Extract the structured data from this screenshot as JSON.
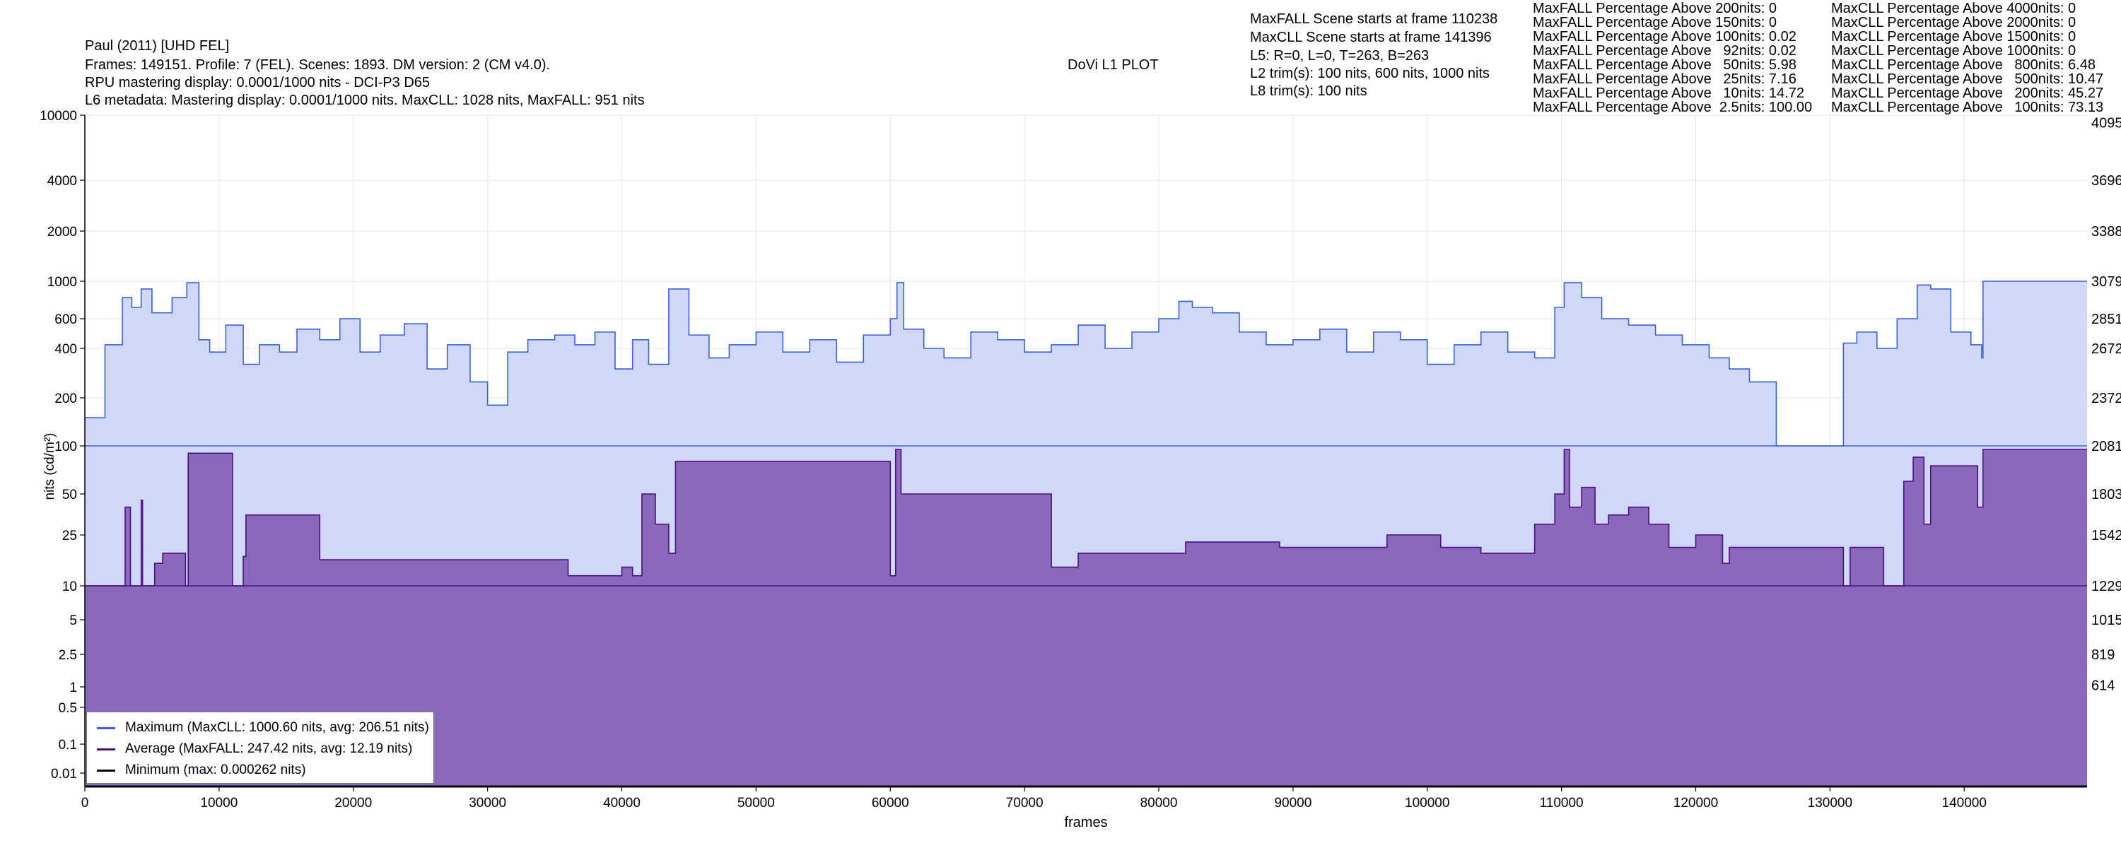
{
  "header": {
    "title_line": "Paul (2011) [UHD FEL]",
    "frames_line": "Frames: 149151. Profile: 7 (FEL). Scenes: 1893. DM version: 2 (CM v4.0).",
    "rpu_line": "RPU mastering display: 0.0001/1000 nits - DCI-P3 D65",
    "l6_line": "L6 metadata: Mastering display: 0.0001/1000 nits. MaxCLL: 1028 nits, MaxFALL: 951 nits",
    "plot_title": "DoVi L1 PLOT"
  },
  "info": [
    "MaxFALL Scene starts at frame 110238",
    "MaxCLL Scene starts at frame 141396",
    "L5: R=0, L=0, T=263, B=263",
    "L2 trim(s): 100 nits, 600 nits, 1000 nits",
    "L8 trim(s): 100 nits"
  ],
  "maxfall_stats": [
    "MaxFALL Percentage Above 200nits: 0",
    "MaxFALL Percentage Above 150nits: 0",
    "MaxFALL Percentage Above 100nits: 0.02",
    "MaxFALL Percentage Above   92nits: 0.02",
    "MaxFALL Percentage Above   50nits: 5.98",
    "MaxFALL Percentage Above   25nits: 7.16",
    "MaxFALL Percentage Above   10nits: 14.72",
    "MaxFALL Percentage Above  2.5nits: 100.00"
  ],
  "maxcll_stats": [
    "MaxCLL Percentage Above 4000nits: 0",
    "MaxCLL Percentage Above 2000nits: 0",
    "MaxCLL Percentage Above 1500nits: 0",
    "MaxCLL Percentage Above 1000nits: 0",
    "MaxCLL Percentage Above   800nits: 6.48",
    "MaxCLL Percentage Above   500nits: 10.47",
    "MaxCLL Percentage Above   200nits: 45.27",
    "MaxCLL Percentage Above   100nits: 73.13"
  ],
  "legend": {
    "maximum": "Maximum (MaxCLL: 1000.60 nits, avg: 206.51 nits)",
    "average": "Average (MaxFALL: 247.42 nits, avg: 12.19 nits)",
    "minimum": "Minimum (max: 0.000262 nits)"
  },
  "colors": {
    "maximum_line": "#3a62d8",
    "maximum_fill": "#d0d8f8",
    "average_line": "#4b0f82",
    "average_fill": "#8a68bc",
    "minimum_line": "#000000"
  },
  "chart_data": {
    "type": "area",
    "title": "DoVi L1 PLOT",
    "xlabel": "frames",
    "ylabel": "nits (cd/m²)",
    "xlim": [
      0,
      149151
    ],
    "ylim": [
      0.005,
      10000
    ],
    "yscale": "symlog-pq",
    "grid": true,
    "legend_position": "bottom-left",
    "x_ticks": [
      "0",
      "10000",
      "20000",
      "30000",
      "40000",
      "50000",
      "60000",
      "70000",
      "80000",
      "90000",
      "100000",
      "110000",
      "120000",
      "130000",
      "140000"
    ],
    "y_ticks_left": [
      "0.01",
      "0.1",
      "0.5",
      "1",
      "2.5",
      "5",
      "10",
      "25",
      "50",
      "100",
      "200",
      "400",
      "600",
      "1000",
      "2000",
      "4000",
      "10000"
    ],
    "y_ticks_right": [
      "614",
      "819",
      "1015",
      "1229",
      "1542",
      "1803",
      "2081",
      "2372",
      "2672",
      "2851",
      "3079",
      "3388",
      "3696",
      "4095"
    ],
    "series": [
      {
        "name": "Maximum (MaxCLL: 1000.60 nits, avg: 206.51 nits)",
        "baseline": 100,
        "x": [
          0,
          1500,
          2800,
          3500,
          4200,
          5000,
          6500,
          7600,
          8500,
          9300,
          10500,
          11800,
          13000,
          14500,
          15800,
          17500,
          19000,
          20500,
          22000,
          23800,
          25500,
          27000,
          28700,
          30000,
          29999,
          31500,
          33000,
          35000,
          36500,
          38000,
          39500,
          40800,
          42000,
          43500,
          45000,
          46500,
          48000,
          50000,
          52000,
          54000,
          56000,
          58000,
          60000,
          60500,
          61000,
          62500,
          64000,
          66000,
          68000,
          70000,
          72000,
          74000,
          76000,
          78000,
          80000,
          81500,
          82500,
          84000,
          86000,
          88000,
          90000,
          92000,
          94000,
          96000,
          98000,
          100000,
          102000,
          104000,
          106000,
          108000,
          109500,
          110200,
          111500,
          113000,
          115000,
          117000,
          119000,
          121000,
          122500,
          124000,
          126000,
          128000,
          130000,
          131000,
          132000,
          133500,
          135000,
          136500,
          137500,
          139000,
          140500,
          141300,
          141400,
          149151
        ],
        "y": [
          150,
          420,
          800,
          700,
          900,
          650,
          800,
          980,
          450,
          380,
          550,
          320,
          420,
          380,
          520,
          450,
          600,
          380,
          480,
          560,
          300,
          420,
          250,
          200,
          180,
          380,
          450,
          480,
          420,
          500,
          300,
          450,
          320,
          900,
          480,
          350,
          420,
          500,
          380,
          450,
          330,
          480,
          600,
          980,
          520,
          400,
          350,
          500,
          450,
          380,
          420,
          550,
          400,
          500,
          600,
          760,
          700,
          650,
          500,
          420,
          450,
          520,
          380,
          500,
          450,
          320,
          420,
          500,
          380,
          350,
          700,
          980,
          800,
          600,
          550,
          480,
          420,
          350,
          300,
          250,
          100,
          100,
          100,
          430,
          500,
          400,
          600,
          950,
          900,
          500,
          420,
          350,
          1000,
          1000
        ]
      },
      {
        "name": "Average (MaxFALL: 247.42 nits, avg: 12.19 nits)",
        "baseline": 10,
        "x": [
          0,
          3000,
          3400,
          4200,
          4300,
          5200,
          5800,
          7500,
          7700,
          11000,
          11800,
          12000,
          17500,
          36000,
          40000,
          40800,
          41500,
          42500,
          43500,
          44000,
          60000,
          60400,
          60800,
          72000,
          74000,
          82000,
          89000,
          97000,
          101000,
          104000,
          108000,
          109500,
          110200,
          110600,
          111500,
          112500,
          113500,
          115000,
          116500,
          118000,
          120000,
          122000,
          122500,
          131000,
          131500,
          134000,
          135500,
          136200,
          137000,
          137500,
          141000,
          141400,
          149151
        ],
        "y": [
          10,
          40,
          10,
          45,
          10,
          15,
          18,
          10,
          90,
          10,
          17,
          35,
          16,
          12,
          14,
          12,
          50,
          30,
          18,
          80,
          12,
          95,
          50,
          14,
          18,
          22,
          20,
          25,
          20,
          18,
          30,
          50,
          95,
          40,
          55,
          30,
          35,
          40,
          30,
          20,
          25,
          15,
          20,
          10,
          20,
          10,
          60,
          85,
          30,
          75,
          40,
          95,
          95
        ]
      },
      {
        "name": "Minimum (max: 0.000262 nits)",
        "x": [
          0,
          149151
        ],
        "y": [
          0.005,
          0.005
        ]
      }
    ]
  }
}
